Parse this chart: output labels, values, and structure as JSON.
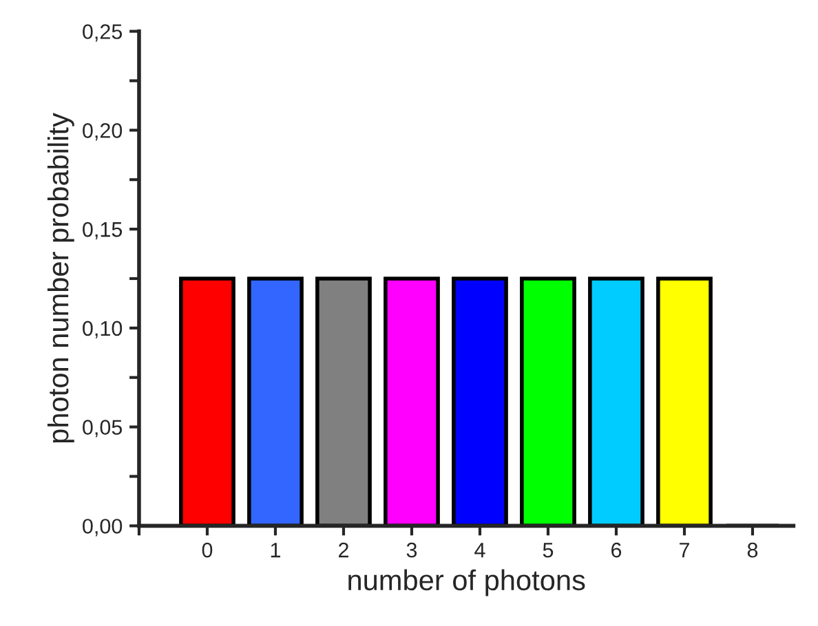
{
  "chart_data": {
    "type": "bar",
    "xlabel": "number of photons",
    "ylabel": "photon number probability",
    "x": [
      0,
      1,
      2,
      3,
      4,
      5,
      6,
      7,
      8
    ],
    "values": [
      0.125,
      0.125,
      0.125,
      0.125,
      0.125,
      0.125,
      0.125,
      0.125,
      0
    ],
    "colors": [
      "#ff0000",
      "#3366ff",
      "#808080",
      "#ff00ff",
      "#0000ff",
      "#00ff00",
      "#00ccff",
      "#ffff00",
      "#000000"
    ],
    "xlim": [
      -1,
      8.6
    ],
    "xticks": [
      {
        "value": -1,
        "label": null
      },
      0,
      1,
      2,
      3,
      4,
      5,
      6,
      7,
      8
    ],
    "ylim": [
      0,
      0.25
    ],
    "yticks": [
      {
        "value": 0,
        "label": "0,00"
      },
      {
        "value": 0.025,
        "label": null
      },
      {
        "value": 0.05,
        "label": "0,05"
      },
      {
        "value": 0.075,
        "label": null
      },
      {
        "value": 0.1,
        "label": "0,10"
      },
      {
        "value": 0.125,
        "label": null
      },
      {
        "value": 0.15,
        "label": "0,15"
      },
      {
        "value": 0.175,
        "label": null
      },
      {
        "value": 0.2,
        "label": "0,20"
      },
      {
        "value": 0.225,
        "label": null
      },
      {
        "value": 0.25,
        "label": "0,25"
      }
    ],
    "grid": false,
    "legend": false
  }
}
